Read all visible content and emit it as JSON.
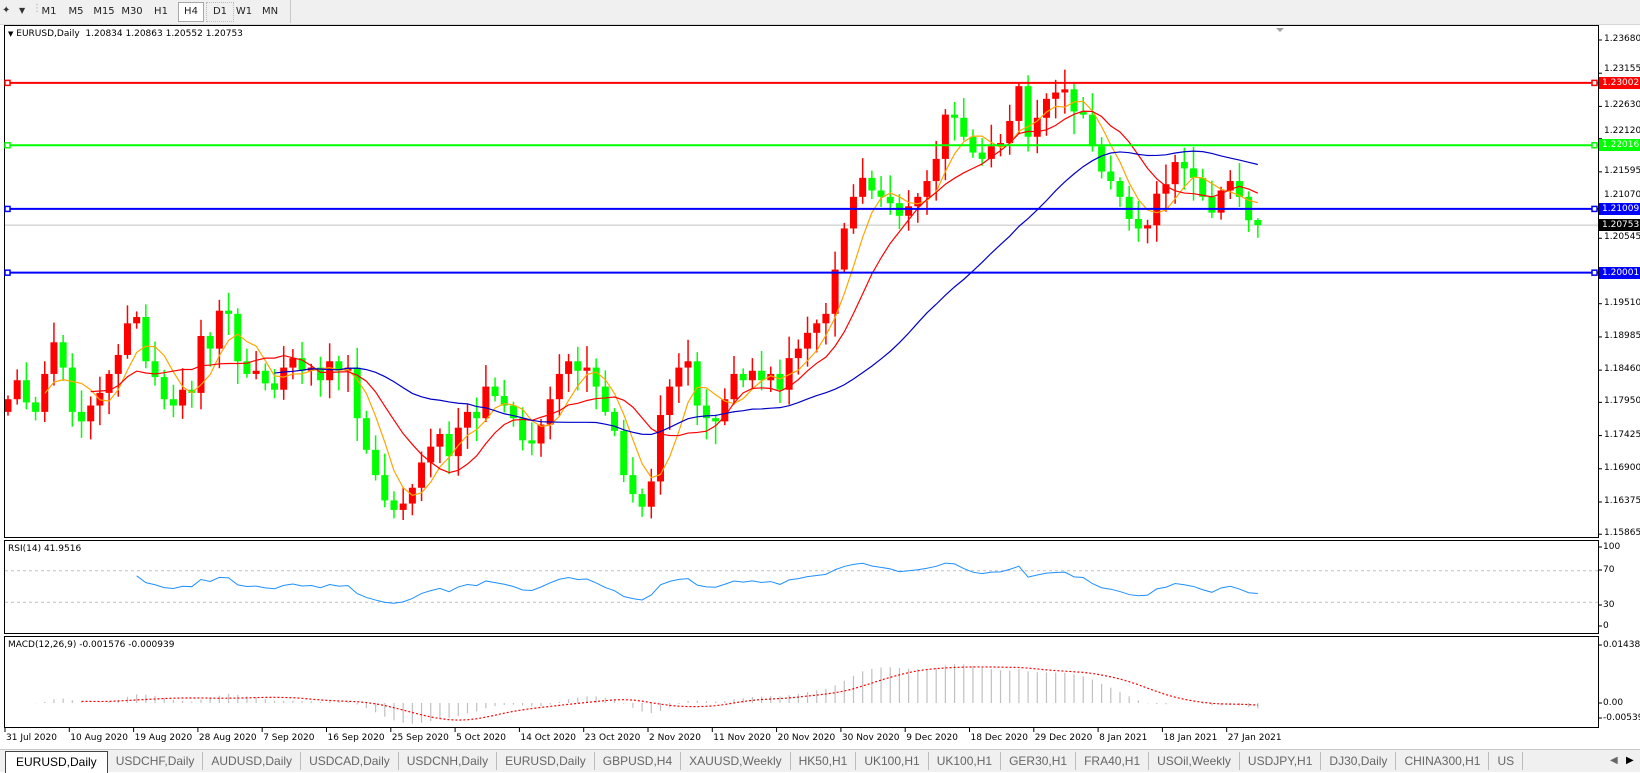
{
  "toolbar": {
    "timeframes": [
      "M1",
      "M5",
      "M15",
      "M30",
      "H1",
      "H4",
      "D1",
      "W1",
      "MN"
    ],
    "active": "H4",
    "icons": [
      "crosshair-tool-icon",
      "dropdown-arrow-icon"
    ]
  },
  "chart": {
    "symbol": "EURUSD,Daily",
    "open": "1.20834",
    "high": "1.20863",
    "low": "1.20552",
    "close": "1.20753",
    "current_price_label": "1.20753",
    "price_ticks": [
      "1.23680",
      "1.23155",
      "1.22630",
      "1.22120",
      "1.21595",
      "1.21070",
      "1.20545",
      "1.19510",
      "1.18985",
      "1.18460",
      "1.17950",
      "1.17425",
      "1.16900",
      "1.16375",
      "1.15865"
    ],
    "levels": [
      {
        "label": "1.23002",
        "color": "#ff0000"
      },
      {
        "label": "1.22016",
        "color": "#00ff00"
      },
      {
        "label": "1.21009",
        "color": "#0000ff"
      },
      {
        "label": "1.20001",
        "color": "#0000ff"
      }
    ],
    "colors": {
      "bull": "#ff0000",
      "bear": "#00ff00",
      "ma_fast": "#ffa500",
      "ma_mid": "#ff0000",
      "ma_slow": "#0000c8",
      "current_line": "#c0c0c0"
    }
  },
  "rsi": {
    "label": "RSI(14) 41.9516",
    "ticks": [
      "100",
      "70",
      "30",
      "0"
    ],
    "color": "#1e90ff"
  },
  "macd": {
    "label": "MACD(12,26,9) -0.001576 -0.000939",
    "ticks": [
      "0.014384",
      "0.00",
      "-0.005396"
    ],
    "signal_color": "#ff0000",
    "hist_color": "#c0c0c0"
  },
  "date_labels": [
    "31 Jul 2020",
    "10 Aug 2020",
    "19 Aug 2020",
    "28 Aug 2020",
    "7 Sep 2020",
    "16 Sep 2020",
    "25 Sep 2020",
    "5 Oct 2020",
    "14 Oct 2020",
    "23 Oct 2020",
    "2 Nov 2020",
    "11 Nov 2020",
    "20 Nov 2020",
    "30 Nov 2020",
    "9 Dec 2020",
    "18 Dec 2020",
    "29 Dec 2020",
    "8 Jan 2021",
    "18 Jan 2021",
    "27 Jan 2021"
  ],
  "tabs": [
    "EURUSD,Daily",
    "USDCHF,Daily",
    "AUDUSD,Daily",
    "USDCAD,Daily",
    "USDCNH,Daily",
    "EURUSD,Daily",
    "GBPUSD,H4",
    "XAUUSD,Weekly",
    "HK50,H1",
    "UK100,H1",
    "UK100,H1",
    "GER30,H1",
    "FRA40,H1",
    "USOil,Weekly",
    "USDJPY,H1",
    "DJ30,Daily",
    "CHINA300,H1",
    "US"
  ],
  "active_tab": 0,
  "chart_data": {
    "type": "candlestick",
    "symbol": "EURUSD",
    "timeframe": "Daily",
    "closes": [
      1.18,
      1.183,
      1.1795,
      1.178,
      1.184,
      1.189,
      1.185,
      1.178,
      1.1765,
      1.179,
      1.181,
      1.184,
      1.187,
      1.192,
      1.193,
      1.186,
      1.1835,
      1.18,
      1.179,
      1.1815,
      1.181,
      1.19,
      1.188,
      1.194,
      1.1935,
      1.186,
      1.184,
      1.1845,
      1.1825,
      1.1815,
      1.185,
      1.1865,
      1.1845,
      1.185,
      1.183,
      1.186,
      1.1845,
      1.185,
      1.177,
      1.172,
      1.168,
      1.164,
      1.1625,
      1.1635,
      1.166,
      1.17,
      1.1725,
      1.1745,
      1.171,
      1.1755,
      1.178,
      1.177,
      1.182,
      1.1805,
      1.179,
      1.177,
      1.1735,
      1.173,
      1.176,
      1.18,
      1.184,
      1.186,
      1.1845,
      1.185,
      1.182,
      1.178,
      1.175,
      1.168,
      1.165,
      1.163,
      1.167,
      1.1775,
      1.182,
      1.185,
      1.186,
      1.179,
      1.177,
      1.1765,
      1.18,
      1.184,
      1.183,
      1.1845,
      1.183,
      1.184,
      1.1815,
      1.1865,
      1.188,
      1.1905,
      1.192,
      1.1935,
      1.2005,
      1.207,
      1.212,
      1.215,
      1.213,
      1.212,
      1.211,
      1.209,
      1.2105,
      1.212,
      1.2145,
      1.218,
      1.225,
      1.2245,
      1.2215,
      1.219,
      1.218,
      1.22,
      1.2205,
      1.224,
      1.2295,
      1.2215,
      1.2245,
      1.2275,
      1.2285,
      1.229,
      1.2255,
      1.225,
      1.22,
      1.216,
      1.2145,
      1.212,
      1.2085,
      1.207,
      1.2075,
      1.2125,
      1.214,
      1.2175,
      1.2165,
      1.215,
      1.212,
      1.2095,
      1.213,
      1.2145,
      1.212,
      1.2083,
      1.20753
    ],
    "last_bar": {
      "open": 1.20834,
      "high": 1.20863,
      "low": 1.20552,
      "close": 1.20753
    },
    "levels": [
      1.23002,
      1.22016,
      1.21009,
      1.20001
    ],
    "ylim": [
      1.15865,
      1.2368
    ],
    "moving_averages": [
      5,
      10,
      30
    ],
    "rsi_period": 14,
    "rsi_levels": [
      30,
      70
    ],
    "rsi_ylim": [
      0,
      100
    ],
    "macd_params": [
      12,
      26,
      9
    ],
    "macd_ylim": [
      -0.005396,
      0.014384
    ]
  }
}
